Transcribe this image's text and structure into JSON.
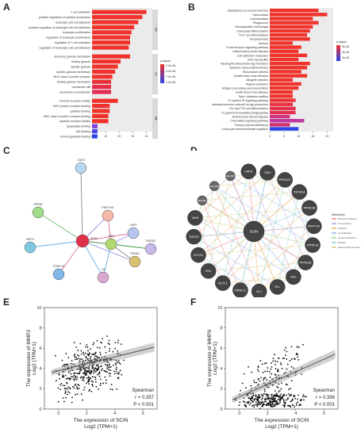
{
  "panels": {
    "A": "A",
    "B": "B",
    "C": "C",
    "D": "D",
    "E": "E",
    "F": "F"
  },
  "panelA": {
    "xticks": [
      "0",
      "10",
      "20",
      "30",
      "40"
    ],
    "legend_title": "p.adjust",
    "legend_ticks": [
      "2.5e-06",
      "5.0e-06",
      "7.5e-06",
      "1.0e-05"
    ],
    "group_labels": [
      "BP",
      "CC",
      "MF"
    ],
    "bp_terms": [
      {
        "label": "T cell activation",
        "value": 40
      },
      {
        "label": "positive regulation of cytokine production",
        "value": 37
      },
      {
        "label": "leukocyte cell-cell adhesion",
        "value": 34
      },
      {
        "label": "positive regulation of leukocyte cell-cell adhesion",
        "value": 31
      },
      {
        "label": "leukocyte proliferation",
        "value": 29
      },
      {
        "label": "regulation of leukocyte proliferation",
        "value": 28
      },
      {
        "label": "regulation of T cell activation",
        "value": 28
      },
      {
        "label": "regulation of leukocyte cell-cell adhesion",
        "value": 27
      }
    ],
    "cc_terms": [
      {
        "label": "secretory granule membrane",
        "value": 28
      },
      {
        "label": "tertiary granule",
        "value": 21
      },
      {
        "label": "specific granule",
        "value": 19
      },
      {
        "label": "specific granule membrane",
        "value": 17
      },
      {
        "label": "MHC class II protein complex",
        "value": 15
      },
      {
        "label": "tertiary granule membrane",
        "value": 14
      },
      {
        "label": "membrane raft",
        "value": 14
      },
      {
        "label": "membrane microdomain",
        "value": 14
      }
    ],
    "mf_terms": [
      {
        "label": "immune receptor activity",
        "value": 19
      },
      {
        "label": "MHC protein complex binding",
        "value": 13
      },
      {
        "label": "cytokine binding",
        "value": 13
      },
      {
        "label": "MHC class II protein complex binding",
        "value": 12
      },
      {
        "label": "cytokine receptor activity",
        "value": 12
      },
      {
        "label": "lipopeptide binding",
        "value": 4
      },
      {
        "label": "IgG binding",
        "value": 4
      },
      {
        "label": "immunoglobulin binding",
        "value": 4
      }
    ]
  },
  "panelB": {
    "xticks": [
      "0",
      "5",
      "10",
      "15",
      "20"
    ],
    "legend_title": "p.adjust",
    "legend_ticks": [
      "5e-05",
      "4e-05",
      "3e-05"
    ],
    "terms": [
      {
        "label": "Staphylococcus aureus infection",
        "value": 17
      },
      {
        "label": "Tuberculosis",
        "value": 20
      },
      {
        "label": "Leishmaniasis",
        "value": 15
      },
      {
        "label": "Phagosome",
        "value": 17
      },
      {
        "label": "Hematopoietic cell lineage",
        "value": 15
      },
      {
        "label": "Osteoclast differentiation",
        "value": 14
      },
      {
        "label": "Th17 cell differentiation",
        "value": 13
      },
      {
        "label": "Toxoplasmosis",
        "value": 14
      },
      {
        "label": "Asthma",
        "value": 8
      },
      {
        "label": "B cell receptor signaling pathway",
        "value": 11
      },
      {
        "label": "Inflammatory bowel disease",
        "value": 10
      },
      {
        "label": "Cell adhesion molecules",
        "value": 13
      },
      {
        "label": "Viral myocarditis",
        "value": 10
      },
      {
        "label": "Neutrophil extracellular trap formation",
        "value": 14
      },
      {
        "label": "Systemic lupus erythematosus",
        "value": 13
      },
      {
        "label": "Rheumatoid arthritis",
        "value": 11
      },
      {
        "label": "Epstein-Barr virus infection",
        "value": 13
      },
      {
        "label": "Allograft rejection",
        "value": 8
      },
      {
        "label": "Platelet activation",
        "value": 11
      },
      {
        "label": "Antigen processing and presentation",
        "value": 10
      },
      {
        "label": "Graft-versus-host disease",
        "value": 8
      },
      {
        "label": "Type I diabetes mellitus",
        "value": 8
      },
      {
        "label": "Fc epsilon RI signaling pathway",
        "value": 9
      },
      {
        "label": "Intestinal immune network for IgA production",
        "value": 8
      },
      {
        "label": "Th1 and Th2 cell differentiation",
        "value": 9
      },
      {
        "label": "Fc gamma R-mediated phagocytosis",
        "value": 9
      },
      {
        "label": "Autoimmune thyroid disease",
        "value": 7
      },
      {
        "label": "Chemokine signaling pathway",
        "value": 12
      },
      {
        "label": "Primary immunodeficiency",
        "value": 7
      },
      {
        "label": "Leukocyte transendothelial migration",
        "value": 10
      }
    ]
  },
  "panelC": {
    "nodes": [
      {
        "id": "CDH3",
        "label": "CDH3"
      },
      {
        "id": "GPR87",
        "label": "GPR87"
      },
      {
        "id": "PIKFYVE",
        "label": "PIKFYVE"
      },
      {
        "id": "LSP1",
        "label": "LSP1"
      },
      {
        "id": "SIRT2",
        "label": "SIRT2"
      },
      {
        "id": "SCIN",
        "label": "SCIN"
      },
      {
        "id": "GSN",
        "label": "GSN"
      },
      {
        "id": "TMOD2",
        "label": "TMOD2"
      },
      {
        "id": "TMOD1",
        "label": "TMOD1"
      },
      {
        "id": "FGRY10",
        "label": "FGRY10"
      },
      {
        "id": "C3",
        "label": "C3"
      },
      {
        "id": "HUB",
        "label": "FLN"
      }
    ]
  },
  "panelD": {
    "center": "SCIN",
    "nodes": [
      "CAPG",
      "GSN",
      "PIP4K2C",
      "PIP4K2A",
      "PIP4K2B",
      "PIKFYVE",
      "PIP5K1A",
      "PIP5K1B",
      "AVIL",
      "VILL",
      "VIL1",
      "PIP5K1C",
      "ACTC1",
      "SVIL",
      "ACTG1",
      "TMOD2",
      "VAV5",
      "CECAM1",
      "CECAM6",
      "CECAM5"
    ],
    "legend_title": "Networks",
    "legend": [
      {
        "label": "Physical Interactions",
        "color": "#f4a6a0"
      },
      {
        "label": "Co-expression",
        "color": "#c9b3e0"
      },
      {
        "label": "Predicted",
        "color": "#f6c48a"
      },
      {
        "label": "Co-localization",
        "color": "#a8c8f0"
      },
      {
        "label": "Genetic Interactions",
        "color": "#b8e0b0"
      },
      {
        "label": "Pathway",
        "color": "#a8dcdc"
      },
      {
        "label": "Shared protein domains",
        "color": "#e2d9a0"
      }
    ]
  },
  "panelE": {
    "ylabel_line1": "The expression of MMP2",
    "ylabel_line2": "Log2 (TPM+1)",
    "xlabel_line1": "The expression of SCIN",
    "xlabel_line2": "Log2 (TPM+1)",
    "xticks": [
      "0",
      "2",
      "4",
      "6"
    ],
    "yticks": [
      "0",
      "2",
      "4",
      "6",
      "8",
      "10"
    ],
    "stats": {
      "title": "Spearman",
      "r": "r = 0.357",
      "p": "P < 0.001"
    }
  },
  "panelF": {
    "ylabel_line1": "The expression of MMP9",
    "ylabel_line2": "Log2 (TPM+1)",
    "xlabel_line1": "The expression of SCIN",
    "xlabel_line2": "Log2 (TPM+1)",
    "xticks": [
      "0",
      "2",
      "4",
      "6"
    ],
    "yticks": [
      "0",
      "2",
      "4",
      "6",
      "8",
      "10"
    ],
    "stats": {
      "title": "Spearman",
      "r": "r = 0.356",
      "p": "P < 0.001"
    }
  },
  "colors": {
    "red": "#f0322b",
    "blue": "#2a44e8",
    "purple": "#8a3fd0"
  }
}
